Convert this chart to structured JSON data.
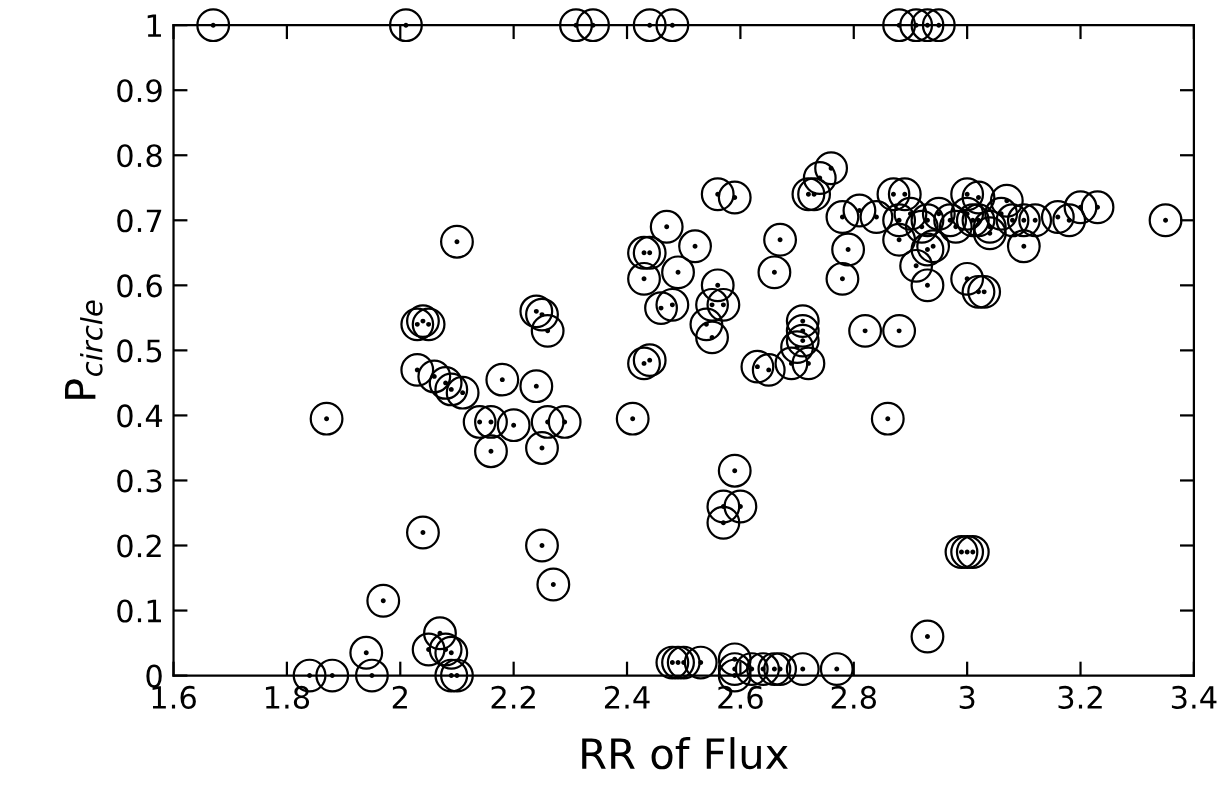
{
  "chart_data": {
    "type": "scatter",
    "xlabel": "RR of Flux",
    "ylabel": "P$_{circle}$",
    "xlim": [
      1.6,
      3.4
    ],
    "ylim": [
      0,
      1
    ],
    "xticks": [
      1.6,
      1.8,
      2,
      2.2,
      2.4,
      2.6,
      2.8,
      3,
      3.2,
      3.4
    ],
    "yticks": [
      0,
      0.1,
      0.2,
      0.3,
      0.4,
      0.5,
      0.6,
      0.7,
      0.8,
      0.9,
      1
    ],
    "marker": "circle",
    "grid": false,
    "legend": false,
    "series": [
      {
        "color": "#000000",
        "x": [
          1.67,
          2.01,
          2.31,
          2.34,
          2.44,
          2.48,
          2.88,
          2.91,
          2.93,
          2.95,
          2.1,
          2.03,
          2.04,
          2.05,
          2.03,
          2.06,
          2.08,
          2.09,
          2.11,
          2.18,
          2.24,
          2.25,
          2.26,
          2.24,
          2.43,
          2.47,
          2.43,
          2.43,
          2.46,
          2.48,
          1.87,
          2.14,
          2.16,
          2.2,
          2.26,
          2.29,
          2.16,
          2.25,
          2.41,
          2.04,
          2.25,
          2.27,
          1.97,
          1.94,
          1.84,
          1.88,
          1.95,
          2.05,
          2.07,
          2.08,
          2.09,
          2.09,
          2.1,
          2.48,
          2.49,
          2.5,
          2.53,
          2.59,
          2.59,
          2.59,
          2.62,
          2.64,
          2.66,
          2.67,
          2.71,
          2.77,
          2.86,
          2.59,
          2.57,
          2.6,
          2.57,
          2.99,
          3.0,
          3.01,
          2.93,
          2.52,
          2.44,
          2.49,
          2.56,
          2.55,
          2.57,
          2.54,
          2.55,
          2.44,
          2.56,
          2.59,
          2.67,
          2.66,
          2.71,
          2.71,
          2.71,
          2.7,
          2.72,
          2.69,
          2.63,
          2.65,
          2.82,
          2.88,
          2.76,
          2.74,
          2.72,
          2.73,
          2.78,
          2.81,
          2.79,
          2.78,
          2.84,
          2.87,
          2.89,
          2.88,
          2.9,
          2.92,
          2.93,
          2.95,
          2.97,
          2.98,
          3.0,
          3.01,
          3.02,
          3.04,
          3.06,
          3.08,
          3.1,
          3.12,
          3.0,
          3.02,
          3.07,
          2.88,
          2.93,
          2.91,
          2.94,
          2.93,
          3.0,
          3.02,
          3.03,
          3.04,
          3.1,
          3.16,
          3.18,
          3.2,
          3.23,
          3.35
        ],
        "values": [
          1,
          1,
          1,
          1,
          1,
          1,
          1,
          1,
          1,
          1,
          0.667,
          0.54,
          0.545,
          0.54,
          0.47,
          0.46,
          0.45,
          0.44,
          0.435,
          0.455,
          0.56,
          0.555,
          0.53,
          0.445,
          0.48,
          0.69,
          0.65,
          0.61,
          0.565,
          0.57,
          0.395,
          0.39,
          0.39,
          0.385,
          0.39,
          0.39,
          0.345,
          0.35,
          0.395,
          0.22,
          0.2,
          0.14,
          0.115,
          0.035,
          0,
          0,
          0,
          0.04,
          0.065,
          0.04,
          0.035,
          0,
          0,
          0.02,
          0.02,
          0.02,
          0.02,
          0.025,
          0.01,
          0,
          0.01,
          0.01,
          0.01,
          0.01,
          0.01,
          0.01,
          0.395,
          0.315,
          0.26,
          0.26,
          0.235,
          0.19,
          0.19,
          0.19,
          0.06,
          0.66,
          0.65,
          0.62,
          0.6,
          0.57,
          0.57,
          0.54,
          0.52,
          0.485,
          0.74,
          0.735,
          0.67,
          0.62,
          0.545,
          0.53,
          0.515,
          0.505,
          0.48,
          0.48,
          0.475,
          0.47,
          0.53,
          0.53,
          0.78,
          0.765,
          0.74,
          0.74,
          0.705,
          0.715,
          0.655,
          0.61,
          0.705,
          0.74,
          0.74,
          0.7,
          0.71,
          0.69,
          0.7,
          0.71,
          0.7,
          0.69,
          0.71,
          0.7,
          0.7,
          0.69,
          0.71,
          0.7,
          0.7,
          0.7,
          0.74,
          0.735,
          0.73,
          0.67,
          0.655,
          0.63,
          0.66,
          0.6,
          0.61,
          0.59,
          0.59,
          0.68,
          0.66,
          0.705,
          0.7,
          0.72,
          0.72,
          0.7
        ]
      }
    ]
  }
}
